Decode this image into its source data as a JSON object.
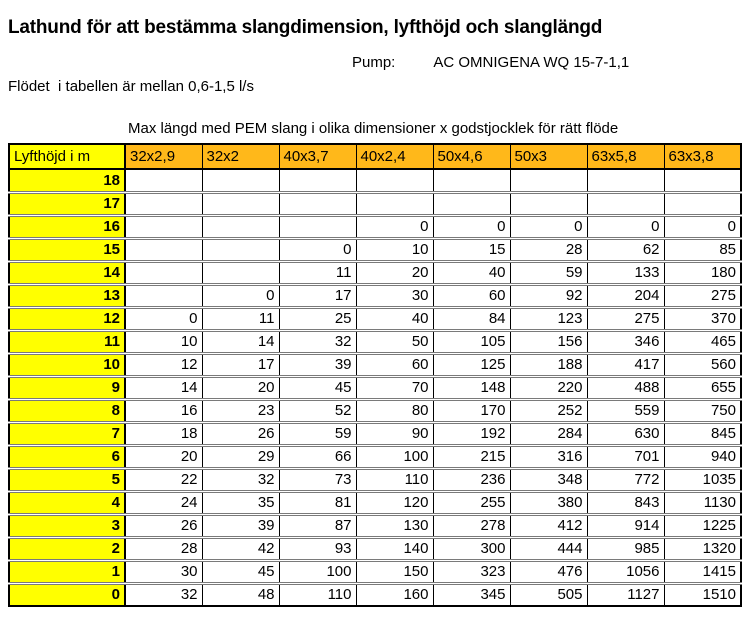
{
  "title": "Lathund för att bestämma slangdimension, lyfthöjd och slanglängd",
  "pump": {
    "label": "Pump:",
    "value": "AC OMNIGENA WQ 15-7-1,1"
  },
  "flow_note": "Flödet  i tabellen är mellan 0,6-1,5 l/s",
  "table_caption": "Max längd med PEM slang i olika dimensioner x godstjocklek för rätt flöde",
  "colors": {
    "header_fill": "#ffb81a",
    "row_label_fill": "#ffff00",
    "grid_dark": "#000000",
    "grid_gray": "#7a7a7a"
  },
  "table": {
    "header": [
      "Lyfthöjd i m",
      "32x2,9",
      "32x2",
      "40x3,7",
      "40x2,4",
      "50x4,6",
      "50x3",
      "63x5,8",
      "63x3,8"
    ],
    "rows": [
      {
        "label": "18",
        "values": [
          "",
          "",
          "",
          "",
          "",
          "",
          "",
          ""
        ]
      },
      {
        "label": "17",
        "values": [
          "",
          "",
          "",
          "",
          "",
          "",
          "",
          ""
        ]
      },
      {
        "label": "16",
        "values": [
          "",
          "",
          "",
          "0",
          "0",
          "0",
          "0",
          "0"
        ]
      },
      {
        "label": "15",
        "values": [
          "",
          "",
          "0",
          "10",
          "15",
          "28",
          "62",
          "85"
        ]
      },
      {
        "label": "14",
        "values": [
          "",
          "",
          "11",
          "20",
          "40",
          "59",
          "133",
          "180"
        ]
      },
      {
        "label": "13",
        "values": [
          "",
          "0",
          "17",
          "30",
          "60",
          "92",
          "204",
          "275"
        ]
      },
      {
        "label": "12",
        "values": [
          "0",
          "11",
          "25",
          "40",
          "84",
          "123",
          "275",
          "370"
        ]
      },
      {
        "label": "11",
        "values": [
          "10",
          "14",
          "32",
          "50",
          "105",
          "156",
          "346",
          "465"
        ]
      },
      {
        "label": "10",
        "values": [
          "12",
          "17",
          "39",
          "60",
          "125",
          "188",
          "417",
          "560"
        ]
      },
      {
        "label": "9",
        "values": [
          "14",
          "20",
          "45",
          "70",
          "148",
          "220",
          "488",
          "655"
        ]
      },
      {
        "label": "8",
        "values": [
          "16",
          "23",
          "52",
          "80",
          "170",
          "252",
          "559",
          "750"
        ]
      },
      {
        "label": "7",
        "values": [
          "18",
          "26",
          "59",
          "90",
          "192",
          "284",
          "630",
          "845"
        ]
      },
      {
        "label": "6",
        "values": [
          "20",
          "29",
          "66",
          "100",
          "215",
          "316",
          "701",
          "940"
        ]
      },
      {
        "label": "5",
        "values": [
          "22",
          "32",
          "73",
          "110",
          "236",
          "348",
          "772",
          "1035"
        ]
      },
      {
        "label": "4",
        "values": [
          "24",
          "35",
          "81",
          "120",
          "255",
          "380",
          "843",
          "1130"
        ]
      },
      {
        "label": "3",
        "values": [
          "26",
          "39",
          "87",
          "130",
          "278",
          "412",
          "914",
          "1225"
        ]
      },
      {
        "label": "2",
        "values": [
          "28",
          "42",
          "93",
          "140",
          "300",
          "444",
          "985",
          "1320"
        ]
      },
      {
        "label": "1",
        "values": [
          "30",
          "45",
          "100",
          "150",
          "323",
          "476",
          "1056",
          "1415"
        ]
      },
      {
        "label": "0",
        "values": [
          "32",
          "48",
          "110",
          "160",
          "345",
          "505",
          "1127",
          "1510"
        ]
      }
    ]
  }
}
